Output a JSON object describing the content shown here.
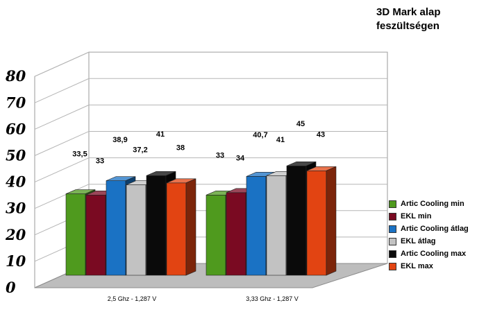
{
  "chart_data": {
    "type": "bar",
    "title": "3D Mark alap feszültségen",
    "categories": [
      "2,5 Ghz - 1,287 V",
      "3,33 Ghz - 1,287 V"
    ],
    "series": [
      {
        "name": "Artic Cooling min",
        "color": "#4f9a1e",
        "values": [
          33.5,
          33
        ]
      },
      {
        "name": "EKL min",
        "color": "#7a0a22",
        "values": [
          33,
          34
        ]
      },
      {
        "name": "Artic Cooling átlag",
        "color": "#1a72c4",
        "values": [
          38.9,
          40.7
        ]
      },
      {
        "name": "EKL átlag",
        "color": "#c2c2c2",
        "values": [
          37.2,
          41
        ]
      },
      {
        "name": "Artic Cooling max",
        "color": "#0a0a0a",
        "values": [
          41,
          45
        ]
      },
      {
        "name": "EKL max",
        "color": "#e24412",
        "values": [
          38,
          43
        ]
      }
    ],
    "data_labels": [
      [
        "33,5",
        "33",
        "38,9",
        "37,2",
        "41",
        "38"
      ],
      [
        "33",
        "34",
        "40,7",
        "41",
        "45",
        "43"
      ]
    ],
    "yticks": [
      "0",
      "10",
      "20",
      "30",
      "40",
      "50",
      "60",
      "70",
      "80"
    ],
    "ylim": [
      0,
      80
    ],
    "xlabel": "",
    "ylabel": "",
    "grid": true,
    "three_d": true,
    "legend_position": "right"
  }
}
